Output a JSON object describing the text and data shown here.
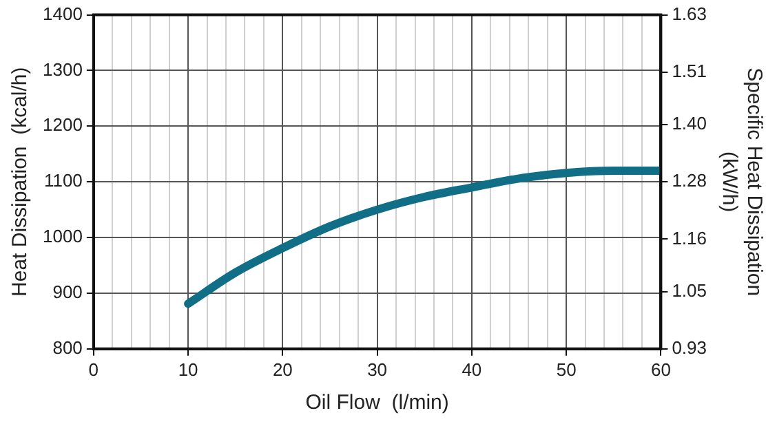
{
  "chart_data": {
    "type": "line",
    "xlabel": "Oil Flow  (l/min)",
    "ylabel": "Heat Dissipation  (kcal/h)",
    "y2label": "Specific Heat Dissipation (kW/h)",
    "x": [
      10,
      15,
      20,
      25,
      30,
      35,
      40,
      45,
      50,
      55,
      60
    ],
    "series": [
      {
        "color": "#106f86",
        "values": [
          881,
          937,
          981,
          1020,
          1050,
          1073,
          1090,
          1106,
          1116,
          1120,
          1120
        ]
      }
    ],
    "xlim": [
      0,
      60
    ],
    "xticks": [
      0,
      {
        "value": 2,
        "label": null
      },
      {
        "value": 4,
        "label": null
      },
      {
        "value": 6,
        "label": null
      },
      {
        "value": 8,
        "label": null
      },
      10,
      {
        "value": 12,
        "label": null
      },
      {
        "value": 14,
        "label": null
      },
      {
        "value": 16,
        "label": null
      },
      {
        "value": 18,
        "label": null
      },
      20,
      {
        "value": 22,
        "label": null
      },
      {
        "value": 24,
        "label": null
      },
      {
        "value": 26,
        "label": null
      },
      {
        "value": 28,
        "label": null
      },
      30,
      {
        "value": 32,
        "label": null
      },
      {
        "value": 34,
        "label": null
      },
      {
        "value": 36,
        "label": null
      },
      {
        "value": 38,
        "label": null
      },
      40,
      {
        "value": 42,
        "label": null
      },
      {
        "value": 44,
        "label": null
      },
      {
        "value": 46,
        "label": null
      },
      {
        "value": 48,
        "label": null
      },
      50,
      {
        "value": 52,
        "label": null
      },
      {
        "value": 54,
        "label": null
      },
      {
        "value": 56,
        "label": null
      },
      {
        "value": 58,
        "label": null
      },
      60
    ],
    "ylim": [
      800,
      1400
    ],
    "yticks": [
      800,
      900,
      1000,
      1100,
      1200,
      1300,
      1400
    ],
    "y2lim": [
      0.93,
      1.63
    ],
    "y2ticks": [
      0.93,
      1.05,
      1.16,
      1.28,
      {
        "value": 1.4,
        "label": "1.40"
      },
      1.51,
      1.63
    ],
    "grid": true,
    "legend": false,
    "marker": "none",
    "line_style": "solid"
  }
}
